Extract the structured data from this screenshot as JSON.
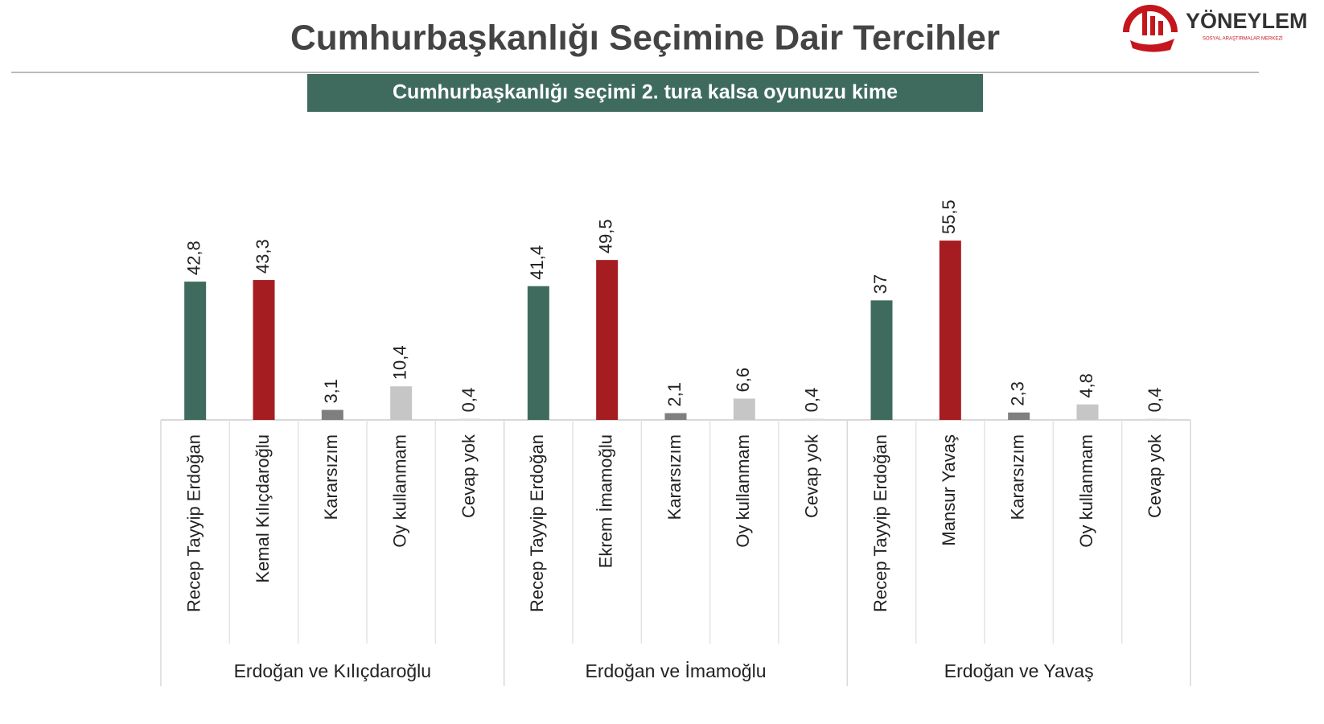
{
  "logo": {
    "name": "YÖNEYLEM",
    "subtitle": "SOSYAL ARAŞTIRMALAR MERKEZİ"
  },
  "chart_data": {
    "type": "bar",
    "title": "Cumhurbaşkanlığı Seçimine Dair Tercihler",
    "subtitle": "Cumhurbaşkanlığı seçimi 2. tura kalsa oyunuzu kime",
    "ylim": [
      0,
      60
    ],
    "groups": [
      {
        "name": "Erdoğan ve Kılıçdaroğlu",
        "categories": [
          "Recep Tayyip Erdoğan",
          "Kemal Kılıçdaroğlu",
          "Kararsızım",
          "Oy kullanmam",
          "Cevap yok"
        ],
        "values": [
          42.8,
          43.3,
          3.1,
          10.4,
          0.4
        ],
        "value_labels": [
          "42,8",
          "43,3",
          "3,1",
          "10,4",
          "0,4"
        ],
        "colors": [
          "#3f6b5e",
          "#a51c21",
          "#7f7f7f",
          "#c6c6c6",
          "#dddddd"
        ]
      },
      {
        "name": "Erdoğan ve İmamoğlu",
        "categories": [
          "Recep Tayyip Erdoğan",
          "Ekrem İmamoğlu",
          "Kararsızım",
          "Oy kullanmam",
          "Cevap yok"
        ],
        "values": [
          41.4,
          49.5,
          2.1,
          6.6,
          0.4
        ],
        "value_labels": [
          "41,4",
          "49,5",
          "2,1",
          "6,6",
          "0,4"
        ],
        "colors": [
          "#3f6b5e",
          "#a51c21",
          "#7f7f7f",
          "#c6c6c6",
          "#dddddd"
        ]
      },
      {
        "name": "Erdoğan ve Yavaş",
        "categories": [
          "Recep Tayyip Erdoğan",
          "Mansur Yavaş",
          "Kararsızım",
          "Oy kullanmam",
          "Cevap yok"
        ],
        "values": [
          37,
          55.5,
          2.3,
          4.8,
          0.4
        ],
        "value_labels": [
          "37",
          "55,5",
          "2,3",
          "4,8",
          "0,4"
        ],
        "colors": [
          "#3f6b5e",
          "#a51c21",
          "#7f7f7f",
          "#c6c6c6",
          "#dddddd"
        ]
      }
    ]
  }
}
